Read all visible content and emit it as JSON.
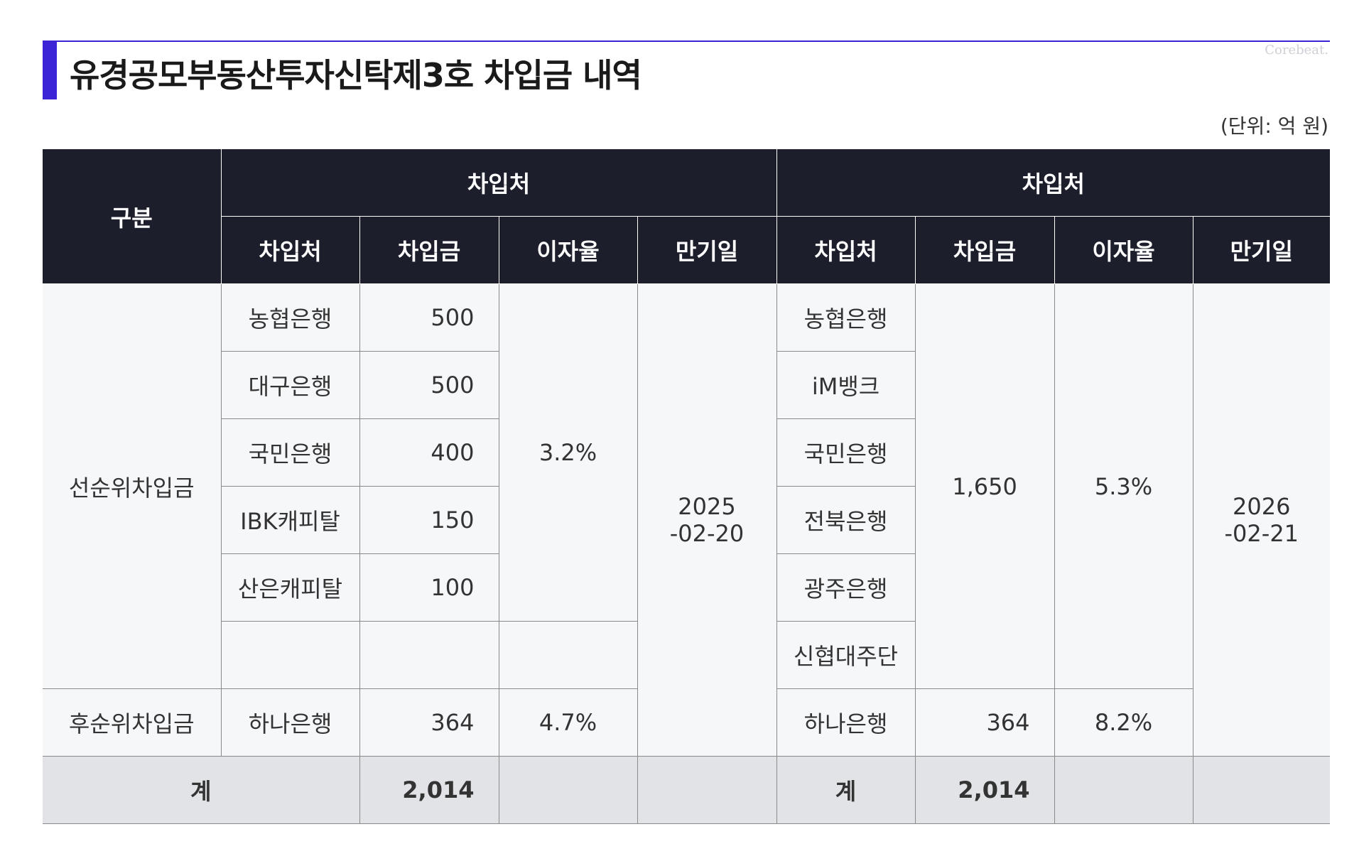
{
  "header": {
    "title": "유경공모부동산투자신탁제3호 차입금 내역",
    "brand": "Corebeat.",
    "unit": "(단위: 억 원)"
  },
  "colors": {
    "accent": "#3b24d6",
    "header_bg": "#1c1f2b",
    "row_bg": "#f6f7f9",
    "total_bg": "#e1e3e7"
  },
  "table": {
    "category_header": "구분",
    "group_headers": [
      "차입처",
      "차입처"
    ],
    "sub_headers": [
      "차입처",
      "차입금",
      "이자율",
      "만기일",
      "차입처",
      "차입금",
      "이자율",
      "만기일"
    ],
    "senior_label": "선순위차입금",
    "subordinated_label": "후순위차입금",
    "total_label": "계",
    "left": {
      "senior": [
        {
          "lender": "농협은행",
          "amount": "500"
        },
        {
          "lender": "대구은행",
          "amount": "500"
        },
        {
          "lender": "국민은행",
          "amount": "400"
        },
        {
          "lender": "IBK캐피탈",
          "amount": "150"
        },
        {
          "lender": "산은캐피탈",
          "amount": "100"
        }
      ],
      "senior_rate": "3.2%",
      "maturity_year": "2025",
      "maturity_rest": "-02-20",
      "sub_lender": "하나은행",
      "sub_amount": "364",
      "sub_rate": "4.7%",
      "total_amount": "2,014"
    },
    "right": {
      "senior_lenders": [
        "농협은행",
        "iM뱅크",
        "국민은행",
        "전북은행",
        "광주은행",
        "신협대주단"
      ],
      "senior_amount": "1,650",
      "senior_rate": "5.3%",
      "maturity_year": "2026",
      "maturity_rest": "-02-21",
      "sub_lender": "하나은행",
      "sub_amount": "364",
      "sub_rate": "8.2%",
      "total_label": "계",
      "total_amount": "2,014"
    }
  }
}
